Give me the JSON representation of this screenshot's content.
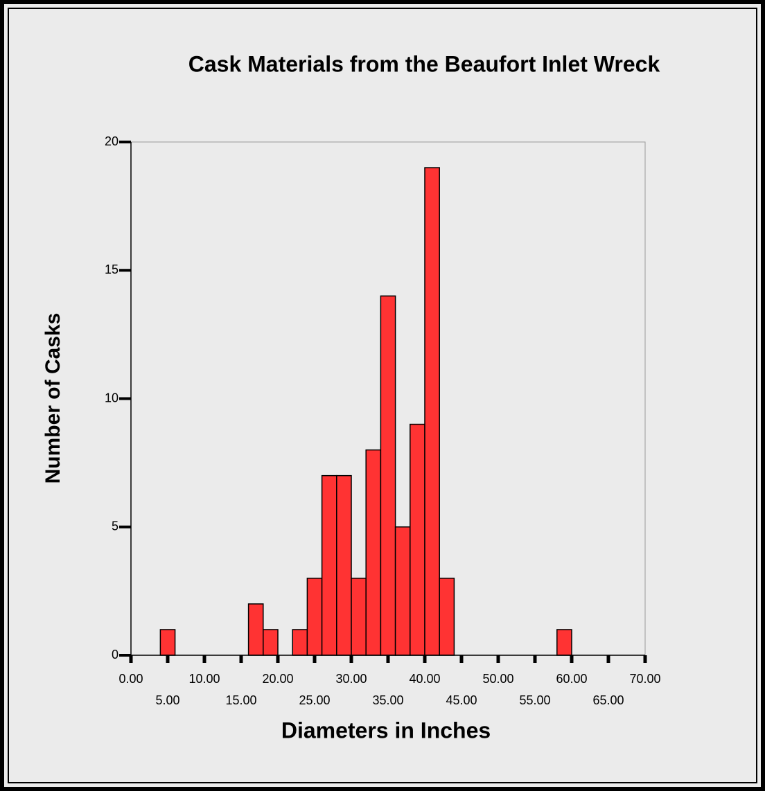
{
  "chart_data": {
    "type": "histogram",
    "title": "Cask Materials from the Beaufort Inlet Wreck",
    "xlabel": "Diameters in Inches",
    "ylabel": "Number of Casks",
    "bins": [
      4,
      6,
      8,
      10,
      12,
      14,
      16,
      18,
      20,
      22,
      24,
      26,
      28,
      30,
      32,
      34,
      36,
      38,
      40,
      42,
      44,
      46,
      48,
      50,
      52,
      54,
      56,
      58,
      60
    ],
    "values": [
      1,
      0,
      0,
      0,
      0,
      0,
      2,
      1,
      0,
      1,
      3,
      7,
      7,
      3,
      8,
      14,
      5,
      9,
      19,
      3,
      0,
      0,
      0,
      0,
      0,
      0,
      0,
      1
    ],
    "color": "#ff3333",
    "xlim": [
      0,
      70
    ],
    "xticks": [
      {
        "value": 0,
        "label": "0.00"
      },
      {
        "value": 5,
        "label": "5.00"
      },
      {
        "value": 10,
        "label": "10.00"
      },
      {
        "value": 15,
        "label": "15.00"
      },
      {
        "value": 20,
        "label": "20.00"
      },
      {
        "value": 25,
        "label": "25.00"
      },
      {
        "value": 30,
        "label": "30.00"
      },
      {
        "value": 35,
        "label": "35.00"
      },
      {
        "value": 40,
        "label": "40.00"
      },
      {
        "value": 45,
        "label": "45.00"
      },
      {
        "value": 50,
        "label": "50.00"
      },
      {
        "value": 55,
        "label": "55.00"
      },
      {
        "value": 60,
        "label": "60.00"
      },
      {
        "value": 65,
        "label": "65.00"
      },
      {
        "value": 70,
        "label": "70.00"
      }
    ],
    "ylim": [
      0,
      20
    ],
    "yticks": [
      0,
      5,
      10,
      15,
      20
    ]
  }
}
